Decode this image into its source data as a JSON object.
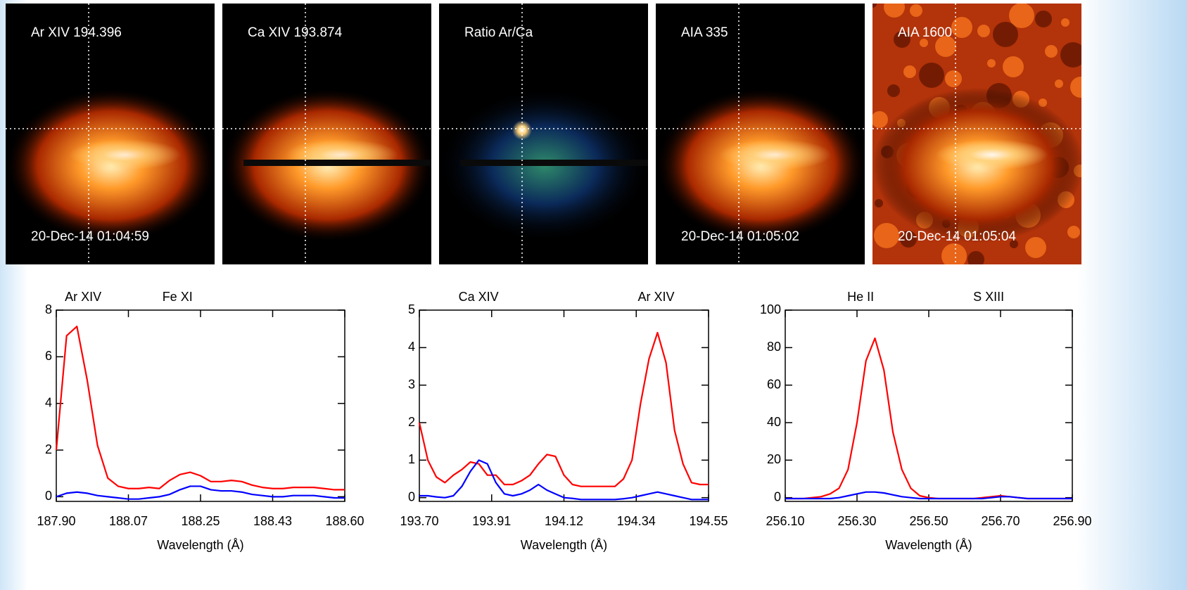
{
  "panels": [
    {
      "label": "Ar XIV 194.396",
      "timestamp": "20-Dec-14 01:04:59"
    },
    {
      "label": "Ca XIV 193.874"
    },
    {
      "label": "Ratio Ar/Ca"
    },
    {
      "label": "AIA 335",
      "timestamp": "20-Dec-14 01:05:02"
    },
    {
      "label": "AIA 1600",
      "timestamp": "20-Dec-14 01:05:04"
    }
  ],
  "chart_data": [
    {
      "type": "line",
      "x_label": "Wavelength (Å)",
      "annotations": [
        {
          "text": "Ar XIV",
          "x": 187.965
        },
        {
          "text": "Fe XI",
          "x": 188.194
        }
      ],
      "xlim": [
        187.9,
        188.6
      ],
      "xticks": [
        {
          "value": 187.9,
          "label": "187.90"
        },
        {
          "value": 188.075,
          "label": "188.07"
        },
        188.25,
        {
          "value": 188.425,
          "label": "188.43"
        },
        {
          "value": 188.6,
          "label": "188.60"
        }
      ],
      "ylim": [
        -0.2,
        8
      ],
      "yticks": [
        0,
        2,
        4,
        6,
        8
      ],
      "x": [
        187.9,
        187.925,
        187.95,
        187.975,
        188.0,
        188.025,
        188.05,
        188.075,
        188.1,
        188.125,
        188.15,
        188.175,
        188.2,
        188.225,
        188.25,
        188.275,
        188.3,
        188.325,
        188.35,
        188.375,
        188.4,
        188.425,
        188.45,
        188.475,
        188.5,
        188.525,
        188.55,
        188.575,
        188.6
      ],
      "series": [
        {
          "color": "#ff0000",
          "values": [
            2.0,
            6.9,
            7.3,
            5.0,
            2.2,
            0.8,
            0.45,
            0.35,
            0.35,
            0.4,
            0.35,
            0.7,
            0.95,
            1.05,
            0.9,
            0.65,
            0.65,
            0.7,
            0.65,
            0.5,
            0.4,
            0.35,
            0.35,
            0.4,
            0.4,
            0.4,
            0.35,
            0.3,
            0.3
          ]
        },
        {
          "color": "#0000ff",
          "values": [
            0.0,
            0.15,
            0.2,
            0.15,
            0.05,
            0,
            -0.05,
            -0.1,
            -0.1,
            -0.05,
            0,
            0.1,
            0.3,
            0.45,
            0.45,
            0.3,
            0.25,
            0.25,
            0.2,
            0.1,
            0.05,
            0,
            0.0,
            0.05,
            0.05,
            0.05,
            0,
            -0.05,
            -0.05
          ]
        }
      ]
    },
    {
      "type": "line",
      "x_label": "Wavelength (Å)",
      "annotations": [
        {
          "text": "Ca XIV",
          "x": 193.874
        },
        {
          "text": "Ar XIV",
          "x": 194.396
        }
      ],
      "xlim": [
        193.7,
        194.55
      ],
      "xticks": [
        {
          "value": 193.7,
          "label": "193.70"
        },
        {
          "value": 193.9125,
          "label": "193.91"
        },
        {
          "value": 194.125,
          "label": "194.12"
        },
        {
          "value": 194.3375,
          "label": "194.34"
        },
        194.55
      ],
      "ylim": [
        -0.1,
        5
      ],
      "yticks": [
        0,
        1,
        2,
        3,
        4,
        5
      ],
      "x": [
        193.7,
        193.725,
        193.75,
        193.775,
        193.8,
        193.825,
        193.85,
        193.875,
        193.9,
        193.925,
        193.95,
        193.975,
        194.0,
        194.025,
        194.05,
        194.075,
        194.1,
        194.125,
        194.15,
        194.175,
        194.2,
        194.225,
        194.25,
        194.275,
        194.3,
        194.325,
        194.35,
        194.375,
        194.4,
        194.425,
        194.45,
        194.475,
        194.5,
        194.525,
        194.55
      ],
      "series": [
        {
          "color": "#ff0000",
          "values": [
            2.0,
            1.0,
            0.55,
            0.4,
            0.6,
            0.75,
            0.95,
            0.9,
            0.6,
            0.6,
            0.35,
            0.35,
            0.45,
            0.6,
            0.9,
            1.15,
            1.1,
            0.6,
            0.35,
            0.3,
            0.3,
            0.3,
            0.3,
            0.3,
            0.5,
            1.0,
            2.5,
            3.7,
            4.4,
            3.6,
            1.8,
            0.9,
            0.4,
            0.35,
            0.35
          ]
        },
        {
          "color": "#0000ff",
          "values": [
            0.05,
            0.05,
            0.02,
            0.0,
            0.05,
            0.3,
            0.7,
            1.0,
            0.9,
            0.4,
            0.1,
            0.05,
            0.1,
            0.2,
            0.35,
            0.2,
            0.1,
            0.0,
            -0.02,
            -0.05,
            -0.05,
            -0.05,
            -0.05,
            -0.05,
            -0.03,
            0.0,
            0.05,
            0.1,
            0.15,
            0.1,
            0.05,
            0.0,
            -0.05,
            -0.05,
            -0.05
          ]
        }
      ]
    },
    {
      "type": "line",
      "x_label": "Wavelength (Å)",
      "annotations": [
        {
          "text": "He II",
          "x": 256.31
        },
        {
          "text": "S XIII",
          "x": 256.667
        }
      ],
      "xlim": [
        256.1,
        256.9
      ],
      "xticks": [
        {
          "value": 256.1,
          "label": "256.10"
        },
        {
          "value": 256.3,
          "label": "256.30"
        },
        {
          "value": 256.5,
          "label": "256.50"
        },
        {
          "value": 256.7,
          "label": "256.70"
        },
        {
          "value": 256.9,
          "label": "256.90"
        }
      ],
      "ylim": [
        -2,
        100
      ],
      "yticks": [
        0,
        20,
        40,
        60,
        80,
        100
      ],
      "x": [
        256.1,
        256.125,
        256.15,
        256.175,
        256.2,
        256.225,
        256.25,
        256.275,
        256.3,
        256.325,
        256.35,
        256.375,
        256.4,
        256.425,
        256.45,
        256.475,
        256.5,
        256.525,
        256.55,
        256.575,
        256.6,
        256.625,
        256.65,
        256.675,
        256.7,
        256.725,
        256.75,
        256.775,
        256.8,
        256.825,
        256.85,
        256.875,
        256.9
      ],
      "series": [
        {
          "color": "#ff0000",
          "values": [
            -0.5,
            -0.5,
            -0.5,
            0,
            0.5,
            2,
            5,
            15,
            40,
            73,
            85,
            68,
            35,
            15,
            5,
            1,
            0,
            -0.5,
            -0.5,
            -0.5,
            -0.5,
            -0.5,
            0,
            0.5,
            1,
            0.5,
            0,
            -0.5,
            -0.5,
            -0.5,
            -0.5,
            -0.5,
            -0.5
          ]
        },
        {
          "color": "#0000ff",
          "values": [
            -0.5,
            -0.5,
            -0.5,
            -0.5,
            -0.5,
            -0.5,
            0,
            1,
            2,
            3,
            3,
            2.5,
            1.5,
            0.5,
            0,
            -0.5,
            -0.5,
            -0.5,
            -0.5,
            -0.5,
            -0.5,
            -0.5,
            -0.5,
            0,
            0.5,
            0.5,
            0,
            -0.5,
            -0.5,
            -0.5,
            -0.5,
            -0.5,
            -0.5
          ]
        }
      ]
    }
  ]
}
